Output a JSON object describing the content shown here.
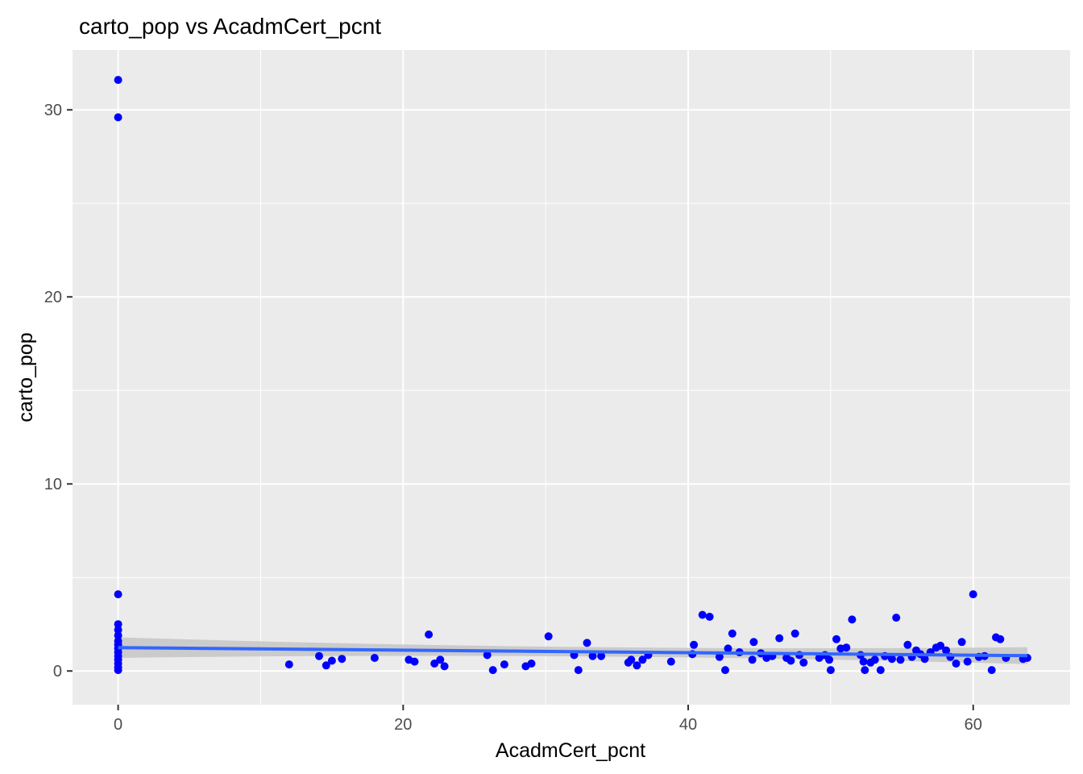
{
  "chart_data": {
    "type": "scatter",
    "title": "carto_pop vs AcadmCert_pcnt",
    "xlabel": "AcadmCert_pcnt",
    "ylabel": "carto_pop",
    "xlim": [
      -3.2,
      66.8
    ],
    "ylim": [
      -1.8,
      33.2
    ],
    "x_ticks": [
      0,
      20,
      40,
      60
    ],
    "x_tick_labels": [
      "0",
      "20",
      "40",
      "60"
    ],
    "y_ticks": [
      0,
      10,
      20,
      30
    ],
    "y_tick_labels": [
      "0",
      "10",
      "20",
      "30"
    ],
    "grid": true,
    "legend": "none",
    "colors": {
      "panel": "#ebebeb",
      "grid": "#ffffff",
      "points": "#0000ff",
      "fit_line": "#3366ff",
      "confidence_band": "#c8c8c8"
    },
    "points": [
      [
        0,
        31.6
      ],
      [
        0,
        29.6
      ],
      [
        0,
        4.1
      ],
      [
        0,
        2.5
      ],
      [
        0,
        2.2
      ],
      [
        0,
        1.9
      ],
      [
        0,
        1.6
      ],
      [
        0,
        1.4
      ],
      [
        0,
        1.2
      ],
      [
        0,
        1.0
      ],
      [
        0,
        0.8
      ],
      [
        0,
        0.6
      ],
      [
        0,
        0.4
      ],
      [
        0,
        0.2
      ],
      [
        0,
        0.05
      ],
      [
        12.0,
        0.35
      ],
      [
        14.1,
        0.8
      ],
      [
        14.6,
        0.3
      ],
      [
        15.0,
        0.55
      ],
      [
        15.7,
        0.65
      ],
      [
        18.0,
        0.7
      ],
      [
        20.4,
        0.6
      ],
      [
        20.8,
        0.5
      ],
      [
        21.8,
        1.95
      ],
      [
        22.2,
        0.4
      ],
      [
        22.6,
        0.6
      ],
      [
        22.9,
        0.25
      ],
      [
        25.9,
        0.85
      ],
      [
        26.3,
        0.05
      ],
      [
        27.1,
        0.35
      ],
      [
        28.6,
        0.25
      ],
      [
        29.0,
        0.4
      ],
      [
        30.2,
        1.85
      ],
      [
        32.0,
        0.85
      ],
      [
        32.3,
        0.05
      ],
      [
        32.9,
        1.5
      ],
      [
        33.3,
        0.8
      ],
      [
        33.9,
        0.8
      ],
      [
        35.8,
        0.45
      ],
      [
        36.0,
        0.6
      ],
      [
        36.4,
        0.3
      ],
      [
        36.8,
        0.6
      ],
      [
        37.2,
        0.85
      ],
      [
        38.8,
        0.5
      ],
      [
        40.3,
        0.9
      ],
      [
        40.4,
        1.4
      ],
      [
        41.0,
        3.0
      ],
      [
        41.5,
        2.9
      ],
      [
        42.2,
        0.75
      ],
      [
        42.6,
        0.05
      ],
      [
        42.8,
        1.2
      ],
      [
        43.1,
        2.0
      ],
      [
        43.6,
        1.0
      ],
      [
        44.5,
        0.6
      ],
      [
        44.6,
        1.55
      ],
      [
        45.1,
        0.95
      ],
      [
        45.5,
        0.7
      ],
      [
        45.9,
        0.8
      ],
      [
        46.4,
        1.75
      ],
      [
        46.9,
        0.7
      ],
      [
        47.2,
        0.55
      ],
      [
        47.5,
        2.0
      ],
      [
        47.8,
        0.85
      ],
      [
        48.1,
        0.45
      ],
      [
        49.2,
        0.7
      ],
      [
        49.6,
        0.85
      ],
      [
        49.9,
        0.6
      ],
      [
        50.0,
        0.05
      ],
      [
        50.4,
        1.7
      ],
      [
        50.7,
        1.2
      ],
      [
        51.1,
        1.25
      ],
      [
        51.5,
        2.75
      ],
      [
        52.1,
        0.85
      ],
      [
        52.3,
        0.5
      ],
      [
        52.4,
        0.05
      ],
      [
        52.8,
        0.45
      ],
      [
        53.1,
        0.6
      ],
      [
        53.5,
        0.05
      ],
      [
        53.8,
        0.8
      ],
      [
        54.3,
        0.65
      ],
      [
        54.6,
        2.85
      ],
      [
        54.9,
        0.6
      ],
      [
        55.4,
        1.4
      ],
      [
        55.7,
        0.75
      ],
      [
        56.0,
        1.1
      ],
      [
        56.3,
        0.9
      ],
      [
        56.6,
        0.65
      ],
      [
        57.0,
        1.0
      ],
      [
        57.4,
        1.25
      ],
      [
        57.7,
        1.35
      ],
      [
        58.1,
        1.1
      ],
      [
        58.4,
        0.75
      ],
      [
        58.8,
        0.4
      ],
      [
        59.2,
        1.55
      ],
      [
        59.6,
        0.5
      ],
      [
        60.0,
        4.1
      ],
      [
        60.4,
        0.75
      ],
      [
        60.8,
        0.8
      ],
      [
        61.3,
        0.05
      ],
      [
        61.6,
        1.8
      ],
      [
        61.9,
        1.7
      ],
      [
        62.3,
        0.7
      ],
      [
        63.5,
        0.65
      ],
      [
        63.8,
        0.7
      ]
    ],
    "smooth": {
      "method": "lm",
      "x_range": [
        0,
        63.8
      ],
      "y_start": 1.25,
      "y_end": 0.82,
      "ci_half_width_ends": 0.55,
      "ci_half_width_mid": 0.25
    }
  }
}
